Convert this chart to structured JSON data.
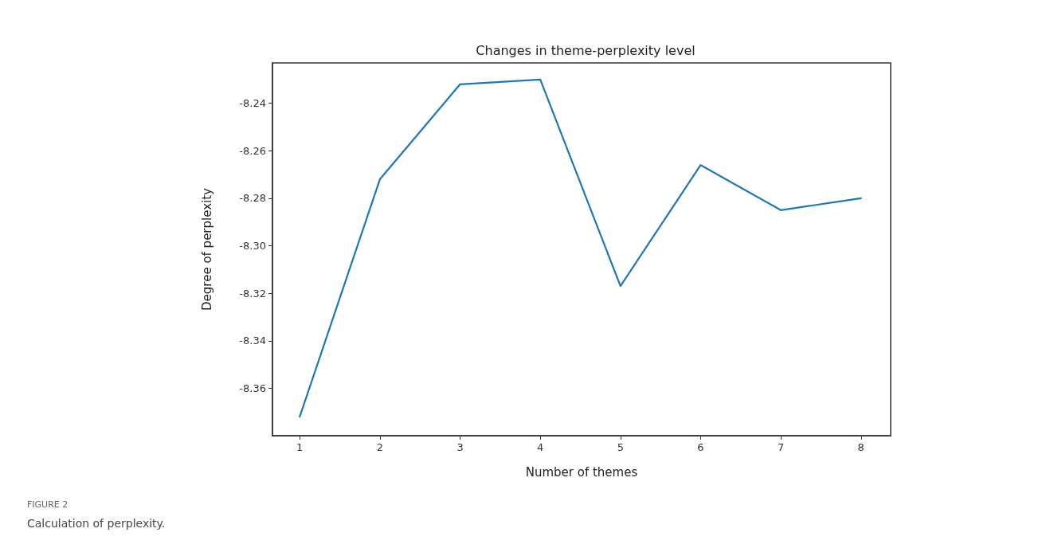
{
  "chart_data": {
    "type": "line",
    "title": "Changes in theme-perplexity level",
    "xlabel": "Number of themes",
    "ylabel": "Degree of perplexity",
    "annotations": [
      "FIGURE 2",
      "Calculation of perplexity."
    ],
    "x": [
      1,
      2,
      3,
      4,
      5,
      6,
      7,
      8
    ],
    "series": [
      {
        "color": "#1f77b4",
        "values": [
          -8.372,
          -8.272,
          -8.232,
          -8.23,
          -8.317,
          -8.266,
          -8.285,
          -8.28
        ]
      }
    ],
    "xlim": [
      0.66,
      8.37
    ],
    "xticks": [
      1,
      2,
      3,
      4,
      5,
      6,
      7,
      8
    ],
    "ylim": [
      -8.38,
      -8.223
    ],
    "yticks": [
      -8.36,
      -8.34,
      -8.32,
      {
        "value": -8.3,
        "label": "-8.30"
      },
      -8.28,
      -8.26,
      -8.24
    ],
    "grid": false,
    "marker": "none",
    "line_style": "solid"
  }
}
